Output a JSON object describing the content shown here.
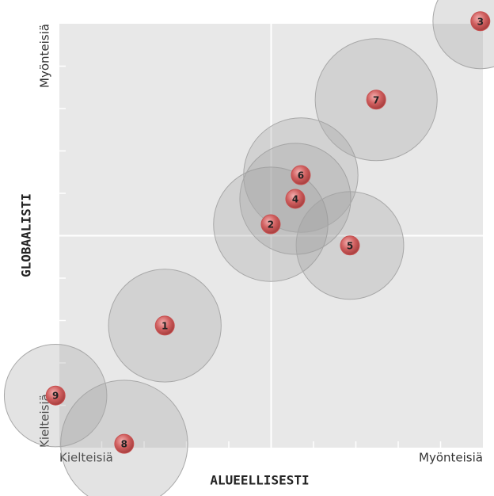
{
  "chart_data": {
    "type": "bubble",
    "x_label": "ALUEELLISESTI",
    "y_label": "GLOBAALISTI",
    "labels": [
      "1",
      "2",
      "3",
      "4",
      "5",
      "6",
      "7",
      "8",
      "9"
    ],
    "x": [
      2.49,
      4.99,
      9.94,
      5.57,
      6.86,
      5.7,
      7.48,
      1.53,
      -0.09
    ],
    "values": [
      2.88,
      5.27,
      10.06,
      5.87,
      4.77,
      6.43,
      8.21,
      0.09,
      1.23
    ],
    "sizes": [
      1.33,
      1.35,
      1.12,
      1.31,
      1.27,
      1.35,
      1.44,
      1.5,
      1.21
    ],
    "bubble_color": "#9a9a9a",
    "marker_color": "#c85050",
    "xlim": [
      0,
      10
    ],
    "ylim": [
      0,
      10
    ],
    "xticks": [
      {
        "value": 0,
        "label": "Kielteisiä"
      },
      {
        "value": 10,
        "label": "Myönteisiä"
      }
    ],
    "yticks": [
      {
        "value": 0,
        "label": "Kielteisiä"
      },
      {
        "value": 10,
        "label": "Myönteisiä"
      }
    ],
    "minor_ticks": [
      1,
      2,
      3,
      4,
      5,
      6,
      7,
      8,
      9
    ],
    "xdivider": 5,
    "ydivider": 5
  }
}
